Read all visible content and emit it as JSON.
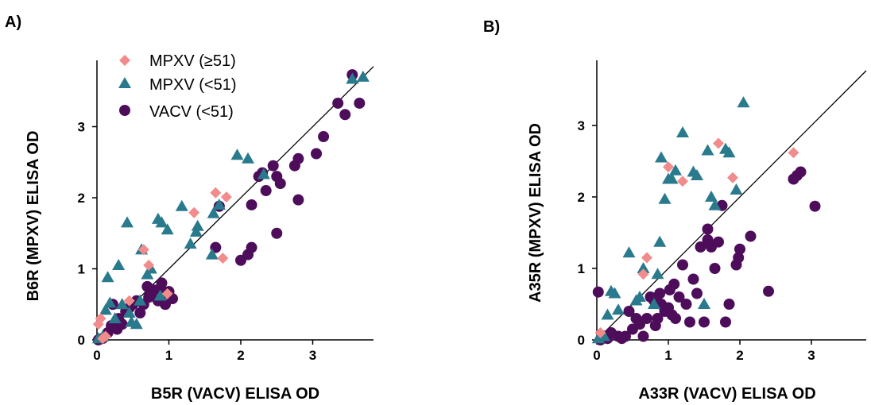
{
  "colors": {
    "mpxv_high": "#f28b8b",
    "mpxv_low": "#2a7a8e",
    "vacv_low": "#4d0d5a"
  },
  "legend": [
    {
      "label": "MPXV (≥51)",
      "marker": "diamond",
      "color": "#f28b8b"
    },
    {
      "label": "MPXV (<51)",
      "marker": "triangle",
      "color": "#2a7a8e"
    },
    {
      "label": "VACV (<51)",
      "marker": "circle",
      "color": "#4d0d5a"
    }
  ],
  "chart_data": [
    {
      "panel": "A)",
      "type": "scatter",
      "xlabel": "B5R (VACV) ELISA OD",
      "ylabel": "B6R (MPXV) ELISA OD",
      "xlim": [
        0,
        3.8
      ],
      "ylim": [
        0,
        3.9
      ],
      "xticks": [
        0,
        1,
        2,
        3
      ],
      "yticks": [
        0,
        1,
        2,
        3
      ],
      "identity_line": true,
      "series": [
        {
          "name": "MPXV (≥51)",
          "marker": "diamond",
          "points": [
            [
              0.02,
              0.22
            ],
            [
              0.05,
              0.3
            ],
            [
              0.08,
              0.02
            ],
            [
              0.12,
              0.05
            ],
            [
              0.45,
              0.55
            ],
            [
              0.65,
              1.27
            ],
            [
              0.72,
              1.05
            ],
            [
              0.98,
              0.65
            ],
            [
              1.35,
              1.79
            ],
            [
              1.65,
              2.07
            ],
            [
              1.75,
              1.15
            ],
            [
              1.8,
              2.01
            ]
          ]
        },
        {
          "name": "MPXV (<51)",
          "marker": "triangle",
          "points": [
            [
              0.02,
              0.02
            ],
            [
              0.08,
              0.05
            ],
            [
              0.12,
              0.42
            ],
            [
              0.18,
              0.52
            ],
            [
              0.15,
              0.88
            ],
            [
              0.25,
              0.3
            ],
            [
              0.3,
              1.05
            ],
            [
              0.35,
              0.5
            ],
            [
              0.42,
              1.65
            ],
            [
              0.45,
              0.38
            ],
            [
              0.48,
              0.25
            ],
            [
              0.55,
              0.22
            ],
            [
              0.6,
              0.55
            ],
            [
              0.62,
              1.27
            ],
            [
              0.7,
              0.92
            ],
            [
              0.75,
              1.0
            ],
            [
              0.85,
              1.7
            ],
            [
              0.88,
              0.62
            ],
            [
              0.9,
              1.65
            ],
            [
              0.98,
              1.55
            ],
            [
              1.18,
              1.88
            ],
            [
              1.3,
              1.35
            ],
            [
              1.38,
              1.52
            ],
            [
              1.4,
              1.6
            ],
            [
              1.6,
              1.2
            ],
            [
              1.62,
              1.78
            ],
            [
              1.7,
              1.9
            ],
            [
              1.95,
              2.6
            ],
            [
              2.1,
              2.55
            ],
            [
              2.32,
              2.33
            ],
            [
              3.55,
              3.67
            ],
            [
              3.7,
              3.7
            ]
          ]
        },
        {
          "name": "VACV (<51)",
          "marker": "circle",
          "points": [
            [
              0.02,
              0.0
            ],
            [
              0.08,
              0.02
            ],
            [
              0.15,
              0.1
            ],
            [
              0.2,
              0.2
            ],
            [
              0.22,
              0.5
            ],
            [
              0.28,
              0.15
            ],
            [
              0.3,
              0.3
            ],
            [
              0.35,
              0.22
            ],
            [
              0.4,
              0.4
            ],
            [
              0.45,
              0.45
            ],
            [
              0.5,
              0.5
            ],
            [
              0.55,
              0.55
            ],
            [
              0.6,
              0.38
            ],
            [
              0.65,
              0.5
            ],
            [
              0.7,
              0.75
            ],
            [
              0.72,
              0.6
            ],
            [
              0.75,
              0.65
            ],
            [
              0.8,
              0.7
            ],
            [
              0.85,
              0.55
            ],
            [
              0.88,
              0.72
            ],
            [
              0.9,
              0.8
            ],
            [
              0.92,
              0.65
            ],
            [
              0.95,
              0.5
            ],
            [
              1.0,
              0.68
            ],
            [
              1.05,
              0.58
            ],
            [
              1.65,
              1.3
            ],
            [
              1.7,
              1.88
            ],
            [
              2.0,
              1.12
            ],
            [
              2.1,
              1.2
            ],
            [
              2.15,
              1.3
            ],
            [
              2.15,
              1.9
            ],
            [
              2.25,
              2.3
            ],
            [
              2.3,
              2.35
            ],
            [
              2.35,
              2.1
            ],
            [
              2.45,
              2.45
            ],
            [
              2.5,
              2.3
            ],
            [
              2.5,
              1.5
            ],
            [
              2.55,
              2.2
            ],
            [
              2.75,
              2.45
            ],
            [
              2.8,
              2.55
            ],
            [
              2.8,
              1.97
            ],
            [
              3.05,
              2.62
            ],
            [
              3.15,
              2.86
            ],
            [
              3.35,
              3.33
            ],
            [
              3.45,
              3.17
            ],
            [
              3.55,
              3.73
            ],
            [
              3.65,
              3.33
            ]
          ]
        }
      ]
    },
    {
      "panel": "B)",
      "type": "scatter",
      "xlabel": "A33R (VACV) ELISA OD",
      "ylabel": "A35R (MPXV) ELISA OD",
      "xlim": [
        0,
        3.8
      ],
      "ylim": [
        0,
        3.9
      ],
      "xticks": [
        0,
        1,
        2,
        3
      ],
      "yticks": [
        0,
        1,
        2,
        3
      ],
      "identity_line": true,
      "series": [
        {
          "name": "MPXV (≥51)",
          "marker": "diamond",
          "points": [
            [
              0.05,
              0.1
            ],
            [
              0.65,
              0.92
            ],
            [
              0.7,
              1.15
            ],
            [
              1.0,
              2.42
            ],
            [
              1.2,
              2.22
            ],
            [
              1.7,
              2.75
            ],
            [
              1.9,
              2.27
            ],
            [
              2.75,
              2.62
            ]
          ]
        },
        {
          "name": "MPXV (<51)",
          "marker": "triangle",
          "points": [
            [
              0.02,
              0.02
            ],
            [
              0.1,
              0.05
            ],
            [
              0.15,
              0.35
            ],
            [
              0.2,
              0.68
            ],
            [
              0.25,
              0.65
            ],
            [
              0.3,
              0.42
            ],
            [
              0.45,
              1.22
            ],
            [
              0.55,
              0.55
            ],
            [
              0.6,
              0.6
            ],
            [
              0.65,
              1.0
            ],
            [
              0.8,
              0.5
            ],
            [
              0.85,
              0.92
            ],
            [
              0.88,
              1.37
            ],
            [
              0.9,
              2.55
            ],
            [
              0.95,
              1.97
            ],
            [
              1.0,
              2.25
            ],
            [
              1.05,
              2.25
            ],
            [
              1.1,
              2.37
            ],
            [
              1.2,
              2.9
            ],
            [
              1.35,
              2.35
            ],
            [
              1.4,
              2.3
            ],
            [
              1.5,
              0.5
            ],
            [
              1.55,
              2.65
            ],
            [
              1.6,
              2.0
            ],
            [
              1.65,
              1.88
            ],
            [
              1.8,
              2.67
            ],
            [
              1.85,
              2.62
            ],
            [
              1.95,
              2.1
            ],
            [
              2.05,
              3.32
            ]
          ]
        },
        {
          "name": "VACV (<51)",
          "marker": "circle",
          "points": [
            [
              0.02,
              0.67
            ],
            [
              0.05,
              0.0
            ],
            [
              0.1,
              0.05
            ],
            [
              0.15,
              0.02
            ],
            [
              0.2,
              0.1
            ],
            [
              0.3,
              0.05
            ],
            [
              0.35,
              0.02
            ],
            [
              0.4,
              0.05
            ],
            [
              0.45,
              0.4
            ],
            [
              0.5,
              0.15
            ],
            [
              0.55,
              0.3
            ],
            [
              0.6,
              0.22
            ],
            [
              0.65,
              0.05
            ],
            [
              0.7,
              0.3
            ],
            [
              0.75,
              0.6
            ],
            [
              0.8,
              0.55
            ],
            [
              0.82,
              0.2
            ],
            [
              0.85,
              0.3
            ],
            [
              0.88,
              0.65
            ],
            [
              0.9,
              0.5
            ],
            [
              0.95,
              0.4
            ],
            [
              1.0,
              0.45
            ],
            [
              1.02,
              0.7
            ],
            [
              1.05,
              0.35
            ],
            [
              1.08,
              0.78
            ],
            [
              1.1,
              0.3
            ],
            [
              1.15,
              0.6
            ],
            [
              1.2,
              1.05
            ],
            [
              1.25,
              0.5
            ],
            [
              1.3,
              0.25
            ],
            [
              1.35,
              0.85
            ],
            [
              1.4,
              0.65
            ],
            [
              1.45,
              1.3
            ],
            [
              1.5,
              0.25
            ],
            [
              1.55,
              1.4
            ],
            [
              1.55,
              1.55
            ],
            [
              1.6,
              1.3
            ],
            [
              1.65,
              1.0
            ],
            [
              1.7,
              1.37
            ],
            [
              1.75,
              1.88
            ],
            [
              1.8,
              0.25
            ],
            [
              1.85,
              0.5
            ],
            [
              1.95,
              1.05
            ],
            [
              1.98,
              1.15
            ],
            [
              2.0,
              1.27
            ],
            [
              2.15,
              1.45
            ],
            [
              2.4,
              0.68
            ],
            [
              2.75,
              2.25
            ],
            [
              2.8,
              2.3
            ],
            [
              2.85,
              2.35
            ],
            [
              3.05,
              1.87
            ]
          ]
        }
      ]
    }
  ]
}
